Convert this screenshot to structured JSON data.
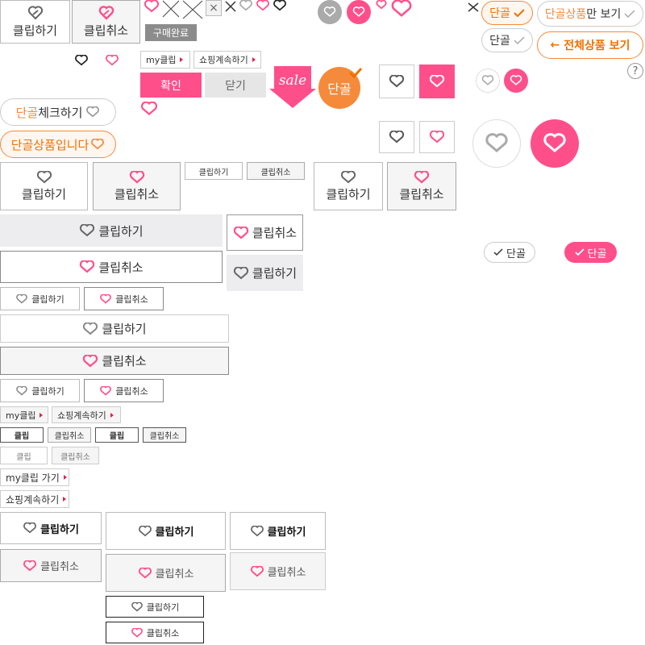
{
  "colors": {
    "pink": "#ff4f8b",
    "orange": "#f58a3b",
    "gray": "#999999",
    "dark": "#333333"
  },
  "icons": {
    "clip_gray": "clip-outline-icon",
    "clip_pink": "clip-pink-icon",
    "close": "close-icon",
    "check": "check-icon",
    "arrow_left": "arrow-left-icon",
    "question": "question-icon",
    "sale": "sale-tag-icon"
  },
  "labels": {
    "clip_do": "클립하기",
    "clip_cancel": "클립취소",
    "purchase_done": "구매완료",
    "my_clip": "my클립",
    "continue_shopping": "쇼핑계속하기",
    "confirm": "확인",
    "close": "닫기",
    "sale": "sale",
    "dangol": "단골",
    "dangol_check_prefix": "단골",
    "dangol_check_suffix": "체크하기",
    "dangol_product": "단골상품입니다",
    "dangol_only_prefix": "단골상품",
    "dangol_only_suffix": "만 보기",
    "all_products": "전체상품 보기",
    "clip": "클립",
    "my_clip_go": "my클립 가기",
    "close_x": "×",
    "question": "?",
    "arrow_left": "←"
  }
}
